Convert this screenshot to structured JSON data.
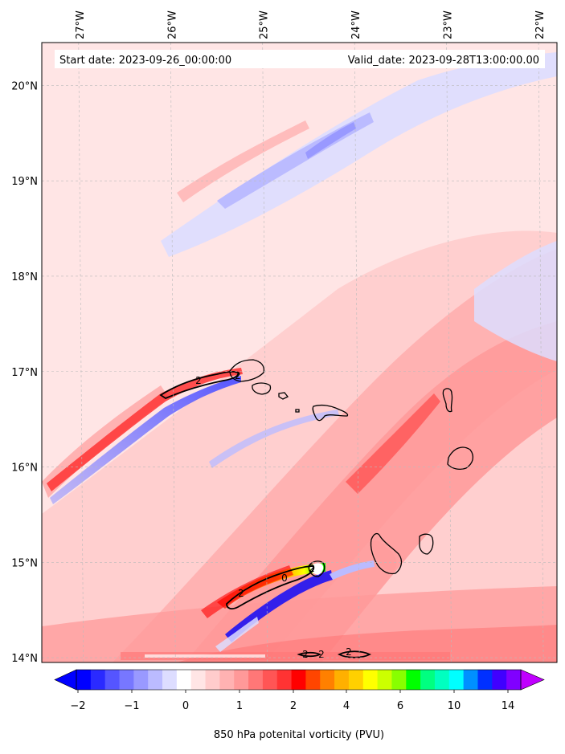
{
  "header": {
    "start_date": "Start date: 2023-09-26_00:00:00",
    "valid_date": "Valid_date: 2023-09-28T13:00:00.00"
  },
  "map": {
    "projection": "PlateCarree",
    "extent": {
      "lon_min": -27.4,
      "lon_max": -21.8,
      "lat_min": 13.95,
      "lat_max": 20.45
    },
    "lon_ticks": [
      {
        "value": -27,
        "label": "27°W"
      },
      {
        "value": -26,
        "label": "26°W"
      },
      {
        "value": -25,
        "label": "25°W"
      },
      {
        "value": -24,
        "label": "24°W"
      },
      {
        "value": -23,
        "label": "23°W"
      },
      {
        "value": -22,
        "label": "22°W"
      }
    ],
    "lat_ticks": [
      {
        "value": 20,
        "label": "20°N"
      },
      {
        "value": 19,
        "label": "19°N"
      },
      {
        "value": 18,
        "label": "18°N"
      },
      {
        "value": 17,
        "label": "17°N"
      },
      {
        "value": 16,
        "label": "16°N"
      },
      {
        "value": 15,
        "label": "15°N"
      },
      {
        "value": 14,
        "label": "14°N"
      }
    ],
    "contour_labels": [
      "2",
      "2",
      "0",
      "2",
      "2",
      "2",
      "2",
      "2"
    ]
  },
  "colorbar": {
    "label": "850 hPa potenital vorticity (PVU)",
    "tick_labels": [
      "−2",
      "−1",
      "0",
      "1",
      "2",
      "4",
      "6",
      "10",
      "14"
    ],
    "colors": [
      "#0000ff",
      "#2a2aff",
      "#5555ff",
      "#7777ff",
      "#9999ff",
      "#bbbbff",
      "#ddddff",
      "#ffffff",
      "#ffe5e5",
      "#ffcccc",
      "#ffb2b2",
      "#ff9999",
      "#ff7777",
      "#ff5555",
      "#ff3333",
      "#ff0000",
      "#ff4500",
      "#ff8000",
      "#ffb000",
      "#ffd000",
      "#ffff00",
      "#ccff00",
      "#88ff00",
      "#00ff00",
      "#00ff80",
      "#00ffc0",
      "#00ffff",
      "#0090ff",
      "#0030ff",
      "#4000ff",
      "#8000ff"
    ],
    "under_color": "#0000ff",
    "over_color": "#c000ff"
  },
  "legend_colors": {
    "background": "#ffe5e5",
    "light_pink": "#ffcccc",
    "pink": "#ffb2b2",
    "salmon": "#ff9999",
    "red": "#ff5555",
    "light_blue": "#ddddff",
    "blue": "#9999ff"
  }
}
